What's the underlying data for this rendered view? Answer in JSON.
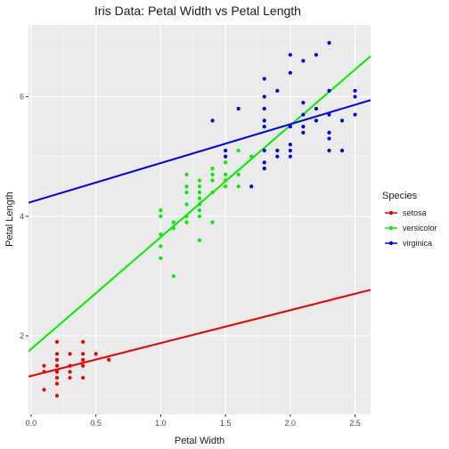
{
  "chart_data": {
    "type": "scatter",
    "title": "Iris Data: Petal Width vs Petal Length",
    "xlabel": "Petal Width",
    "ylabel": "Petal Length",
    "xlim": [
      -0.02,
      2.62
    ],
    "ylim": [
      0.69,
      7.2
    ],
    "x_ticks": [
      0.0,
      0.5,
      1.0,
      1.5,
      2.0,
      2.5
    ],
    "x_tick_labels": [
      "0.0",
      "0.5",
      "1.0",
      "1.5",
      "2.0",
      "2.5"
    ],
    "y_ticks": [
      2,
      4,
      6
    ],
    "y_tick_labels": [
      "2",
      "4",
      "6"
    ],
    "grid": true,
    "legend": {
      "title": "Species",
      "position": "right"
    },
    "series": [
      {
        "name": "setosa",
        "color": "#ee0000",
        "fit": {
          "intercept": 1.33,
          "slope": 0.55
        },
        "points": [
          [
            0.1,
            1.1
          ],
          [
            0.1,
            1.4
          ],
          [
            0.1,
            1.5
          ],
          [
            0.2,
            1.0
          ],
          [
            0.2,
            1.2
          ],
          [
            0.2,
            1.3
          ],
          [
            0.2,
            1.4
          ],
          [
            0.2,
            1.5
          ],
          [
            0.2,
            1.6
          ],
          [
            0.2,
            1.7
          ],
          [
            0.2,
            1.9
          ],
          [
            0.3,
            1.3
          ],
          [
            0.3,
            1.4
          ],
          [
            0.3,
            1.5
          ],
          [
            0.3,
            1.7
          ],
          [
            0.4,
            1.3
          ],
          [
            0.4,
            1.5
          ],
          [
            0.4,
            1.6
          ],
          [
            0.4,
            1.7
          ],
          [
            0.4,
            1.9
          ],
          [
            0.5,
            1.7
          ],
          [
            0.6,
            1.6
          ]
        ]
      },
      {
        "name": "versicolor",
        "color": "#00ee00",
        "fit": {
          "intercept": 1.78,
          "slope": 1.87
        },
        "points": [
          [
            1.0,
            3.3
          ],
          [
            1.0,
            3.5
          ],
          [
            1.0,
            3.7
          ],
          [
            1.0,
            4.0
          ],
          [
            1.0,
            4.1
          ],
          [
            1.1,
            3.0
          ],
          [
            1.1,
            3.8
          ],
          [
            1.1,
            3.9
          ],
          [
            1.2,
            3.9
          ],
          [
            1.2,
            4.0
          ],
          [
            1.2,
            4.2
          ],
          [
            1.2,
            4.4
          ],
          [
            1.2,
            4.5
          ],
          [
            1.2,
            4.7
          ],
          [
            1.3,
            3.6
          ],
          [
            1.3,
            4.0
          ],
          [
            1.3,
            4.1
          ],
          [
            1.3,
            4.2
          ],
          [
            1.3,
            4.3
          ],
          [
            1.3,
            4.4
          ],
          [
            1.3,
            4.5
          ],
          [
            1.3,
            4.6
          ],
          [
            1.4,
            3.9
          ],
          [
            1.4,
            4.4
          ],
          [
            1.4,
            4.6
          ],
          [
            1.4,
            4.7
          ],
          [
            1.4,
            4.8
          ],
          [
            1.5,
            4.5
          ],
          [
            1.5,
            4.6
          ],
          [
            1.5,
            4.7
          ],
          [
            1.5,
            4.9
          ],
          [
            1.5,
            5.0
          ],
          [
            1.6,
            4.5
          ],
          [
            1.6,
            4.7
          ],
          [
            1.6,
            5.1
          ],
          [
            1.7,
            5.0
          ],
          [
            1.8,
            4.8
          ]
        ]
      },
      {
        "name": "virginica",
        "color": "#0000ee",
        "fit": {
          "intercept": 4.24,
          "slope": 0.65
        },
        "points": [
          [
            1.4,
            5.6
          ],
          [
            1.5,
            5.0
          ],
          [
            1.5,
            5.1
          ],
          [
            1.6,
            5.8
          ],
          [
            1.7,
            4.5
          ],
          [
            1.8,
            4.8
          ],
          [
            1.8,
            4.9
          ],
          [
            1.8,
            5.1
          ],
          [
            1.8,
            5.5
          ],
          [
            1.8,
            5.6
          ],
          [
            1.8,
            5.8
          ],
          [
            1.8,
            6.0
          ],
          [
            1.8,
            6.3
          ],
          [
            1.9,
            5.0
          ],
          [
            1.9,
            5.1
          ],
          [
            1.9,
            6.1
          ],
          [
            2.0,
            5.0
          ],
          [
            2.0,
            5.1
          ],
          [
            2.0,
            5.2
          ],
          [
            2.0,
            5.5
          ],
          [
            2.0,
            6.4
          ],
          [
            2.0,
            6.7
          ],
          [
            2.1,
            5.4
          ],
          [
            2.1,
            5.5
          ],
          [
            2.1,
            5.7
          ],
          [
            2.1,
            5.9
          ],
          [
            2.1,
            6.6
          ],
          [
            2.2,
            5.6
          ],
          [
            2.2,
            5.8
          ],
          [
            2.2,
            6.7
          ],
          [
            2.3,
            5.1
          ],
          [
            2.3,
            5.3
          ],
          [
            2.3,
            5.4
          ],
          [
            2.3,
            5.7
          ],
          [
            2.3,
            6.1
          ],
          [
            2.3,
            6.9
          ],
          [
            2.4,
            5.1
          ],
          [
            2.4,
            5.6
          ],
          [
            2.5,
            5.7
          ],
          [
            2.5,
            6.0
          ],
          [
            2.5,
            6.1
          ]
        ]
      }
    ]
  }
}
